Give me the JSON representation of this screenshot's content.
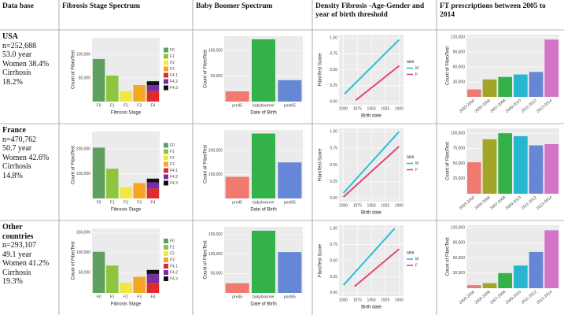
{
  "header": {
    "columns": [
      "Data base",
      "Fibrosis Stage Spectrum",
      "Baby Boomer Spectrum",
      "Density Fibrosis -Age-Gender and year of birth threshold",
      "FT prescriptions between 2005 to 2014"
    ]
  },
  "rows": [
    {
      "database": {
        "name": "USA",
        "lines": [
          "n=252,688",
          "53.0 year",
          "Women 38.4%",
          "Cirrhosis",
          "18.2%"
        ]
      },
      "fibrosis": {
        "type": "stacked-bar",
        "ylabel": "Count of FibroTest",
        "xlabel": "Fibrosis Stage",
        "categories": [
          "F0",
          "F1",
          "F2",
          "F3",
          "F4"
        ],
        "ylim": [
          0,
          135000
        ],
        "yticks": [
          {
            "value": 50000,
            "label": "50,000"
          },
          {
            "value": 100000,
            "label": "100,000"
          }
        ],
        "series": [
          {
            "name": "F0",
            "color": "#5fa05f",
            "values": [
              90000,
              null,
              null,
              null,
              null
            ]
          },
          {
            "name": "F1",
            "color": "#8cc63f",
            "values": [
              null,
              55000,
              null,
              null,
              null
            ]
          },
          {
            "name": "F2",
            "color": "#f2e641",
            "values": [
              null,
              null,
              22000,
              null,
              null
            ]
          },
          {
            "name": "F3",
            "color": "#f5a623",
            "values": [
              null,
              null,
              null,
              35000,
              null
            ]
          },
          {
            "name": "F4.1",
            "color": "#e02b2b",
            "values": [
              null,
              null,
              null,
              null,
              22000
            ]
          },
          {
            "name": "F4.2",
            "color": "#7a2fa0",
            "values": [
              null,
              null,
              null,
              null,
              13000
            ]
          },
          {
            "name": "F4.3",
            "color": "#111111",
            "values": [
              null,
              null,
              null,
              null,
              8000
            ]
          }
        ]
      },
      "babyboomer": {
        "type": "bar",
        "ylabel": "Count of FibroTest",
        "xlabel": "Date of Birth",
        "categories": [
          "pre45",
          "babyboomer",
          "post65"
        ],
        "ylim": [
          0,
          128000
        ],
        "yticks": [
          {
            "value": 50000,
            "label": "50,000"
          },
          {
            "value": 100000,
            "label": "100,000"
          }
        ],
        "values": [
          20000,
          122000,
          42000
        ],
        "colors": [
          "#f07a70",
          "#33b24a",
          "#6687d6"
        ]
      },
      "density": {
        "type": "line",
        "ylabel": "FibroTest Score",
        "xlabel": "Birth date",
        "legend_title": "sex",
        "xlim": [
          2008,
          1892
        ],
        "xticks": [
          2000,
          1975,
          1950,
          1925,
          1900
        ],
        "ylim": [
          -0.05,
          1.05
        ],
        "yticks": [
          {
            "value": 0,
            "label": "0.00"
          },
          {
            "value": 0.25,
            "label": "0.25"
          },
          {
            "value": 0.5,
            "label": "0.50"
          },
          {
            "value": 0.75,
            "label": "0.75"
          },
          {
            "value": 1,
            "label": "1.00"
          }
        ],
        "series": [
          {
            "name": "M",
            "color": "#2bbfd6",
            "x": [
              1998,
              1900
            ],
            "values": [
              0.12,
              0.97
            ]
          },
          {
            "name": "F",
            "color": "#e0457a",
            "x": [
              1978,
              1900
            ],
            "values": [
              0.02,
              0.56
            ]
          }
        ]
      },
      "prescriptions": {
        "type": "bar",
        "ylabel": "Count of FibroTest",
        "categories": [
          "2003-2004",
          "2005-2006",
          "2007-2008",
          "2009-2010",
          "2011-2012",
          "2013-2014"
        ],
        "ylim": [
          0,
          125000
        ],
        "yticks": [
          {
            "value": 30000,
            "label": "30,000"
          },
          {
            "value": 60000,
            "label": "60,000"
          },
          {
            "value": 90000,
            "label": "90,000"
          },
          {
            "value": 120000,
            "label": "120,000"
          }
        ],
        "values": [
          15000,
          35000,
          40000,
          45000,
          50000,
          115000
        ],
        "colors": [
          "#f07a70",
          "#a3a528",
          "#33b24a",
          "#27b5cf",
          "#6687d6",
          "#d474c8"
        ]
      }
    },
    {
      "database": {
        "name": "France",
        "lines": [
          "n=470,762",
          "50.7 year",
          "Women 42.6%",
          "Cirrhosis",
          "14.8%"
        ]
      },
      "fibrosis": {
        "type": "stacked-bar",
        "ylabel": "Count of FibroTest",
        "xlabel": "Fibrosis Stage",
        "categories": [
          "F0",
          "F1",
          "F2",
          "F3",
          "F4"
        ],
        "ylim": [
          0,
          270000
        ],
        "yticks": [
          {
            "value": 100000,
            "label": "100,000"
          },
          {
            "value": 200000,
            "label": "200,000"
          }
        ],
        "series": [
          {
            "name": "F0",
            "color": "#5fa05f",
            "values": [
              205000,
              null,
              null,
              null,
              null
            ]
          },
          {
            "name": "F1",
            "color": "#8cc63f",
            "values": [
              null,
              120000,
              null,
              null,
              null
            ]
          },
          {
            "name": "F2",
            "color": "#f2e641",
            "values": [
              null,
              null,
              45000,
              null,
              null
            ]
          },
          {
            "name": "F3",
            "color": "#f5a623",
            "values": [
              null,
              null,
              null,
              62000,
              null
            ]
          },
          {
            "name": "F4.1",
            "color": "#e02b2b",
            "values": [
              null,
              null,
              null,
              null,
              40000
            ]
          },
          {
            "name": "F4.2",
            "color": "#7a2fa0",
            "values": [
              null,
              null,
              null,
              null,
              25000
            ]
          },
          {
            "name": "F4.3",
            "color": "#111111",
            "values": [
              null,
              null,
              null,
              null,
              15000
            ]
          }
        ]
      },
      "babyboomer": {
        "type": "bar",
        "ylabel": "Count of FibroTest",
        "xlabel": "Date of Birth",
        "categories": [
          "pre45",
          "babyboomer",
          "post65"
        ],
        "ylim": [
          0,
          285000
        ],
        "yticks": [
          {
            "value": 100000,
            "label": "100,000"
          },
          {
            "value": 200000,
            "label": "200,000"
          }
        ],
        "values": [
          90000,
          270000,
          150000
        ],
        "colors": [
          "#f07a70",
          "#33b24a",
          "#6687d6"
        ]
      },
      "density": {
        "type": "line",
        "ylabel": "FibroTest Score",
        "xlabel": "Birth date",
        "legend_title": "sex",
        "xlim": [
          2008,
          1892
        ],
        "xticks": [
          2000,
          1975,
          1950,
          1925,
          1900
        ],
        "ylim": [
          -0.05,
          1.05
        ],
        "yticks": [
          {
            "value": 0,
            "label": "0.00"
          },
          {
            "value": 0.25,
            "label": "0.25"
          },
          {
            "value": 0.5,
            "label": "0.50"
          },
          {
            "value": 0.75,
            "label": "0.75"
          },
          {
            "value": 1,
            "label": "1.00"
          }
        ],
        "series": [
          {
            "name": "M",
            "color": "#2bbfd6",
            "x": [
              2000,
              1900
            ],
            "values": [
              0.08,
              1.0
            ]
          },
          {
            "name": "F",
            "color": "#e0457a",
            "x": [
              2000,
              1900
            ],
            "values": [
              0.02,
              0.78
            ]
          }
        ]
      },
      "prescriptions": {
        "type": "bar",
        "ylabel": "Count of FibroTest",
        "categories": [
          "2003-2004",
          "2005-2006",
          "2007-2008",
          "2009-2010",
          "2011-2012",
          "2013-2014"
        ],
        "ylim": [
          0,
          108000
        ],
        "yticks": [
          {
            "value": 25000,
            "label": "25,000"
          },
          {
            "value": 50000,
            "label": "50,000"
          },
          {
            "value": 75000,
            "label": "75,000"
          },
          {
            "value": 100000,
            "label": "100,000"
          }
        ],
        "values": [
          52000,
          90000,
          100000,
          95000,
          80000,
          82000
        ],
        "colors": [
          "#f07a70",
          "#a3a528",
          "#33b24a",
          "#27b5cf",
          "#6687d6",
          "#d474c8"
        ]
      }
    },
    {
      "database": {
        "name": "Other countries",
        "lines": [
          "n=293,107",
          "49.1 year",
          "Women 41.2%",
          "Cirrhosis",
          "19.3%"
        ]
      },
      "fibrosis": {
        "type": "stacked-bar",
        "ylabel": "Count of FibroTest",
        "xlabel": "Fibrosis Stage",
        "categories": [
          "F0",
          "F1",
          "F2",
          "F3",
          "F4"
        ],
        "ylim": [
          0,
          160000
        ],
        "yticks": [
          {
            "value": 50000,
            "label": "50,000"
          },
          {
            "value": 100000,
            "label": "100,000"
          },
          {
            "value": 150000,
            "label": "150,000"
          }
        ],
        "series": [
          {
            "name": "F0",
            "color": "#5fa05f",
            "values": [
              102000,
              null,
              null,
              null,
              null
            ]
          },
          {
            "name": "F1",
            "color": "#8cc63f",
            "values": [
              null,
              68000,
              null,
              null,
              null
            ]
          },
          {
            "name": "F2",
            "color": "#f2e641",
            "values": [
              null,
              null,
              25000,
              null,
              null
            ]
          },
          {
            "name": "F3",
            "color": "#f5a623",
            "values": [
              null,
              null,
              null,
              40000,
              null
            ]
          },
          {
            "name": "F4.1",
            "color": "#e02b2b",
            "values": [
              null,
              null,
              null,
              null,
              25000
            ]
          },
          {
            "name": "F4.2",
            "color": "#7a2fa0",
            "values": [
              null,
              null,
              null,
              null,
              22000
            ]
          },
          {
            "name": "F4.3",
            "color": "#111111",
            "values": [
              null,
              null,
              null,
              null,
              10000
            ]
          }
        ]
      },
      "babyboomer": {
        "type": "bar",
        "ylabel": "Count of FibroTest",
        "xlabel": "Date of Birth",
        "categories": [
          "pre45",
          "babyboomer",
          "post65"
        ],
        "ylim": [
          0,
          170000
        ],
        "yticks": [
          {
            "value": 50000,
            "label": "50,000"
          },
          {
            "value": 100000,
            "label": "100,000"
          },
          {
            "value": 150000,
            "label": "150,000"
          }
        ],
        "values": [
          25000,
          160000,
          105000
        ],
        "colors": [
          "#f07a70",
          "#33b24a",
          "#6687d6"
        ]
      },
      "density": {
        "type": "line",
        "ylabel": "FibroTest Score",
        "xlabel": "Birth date",
        "legend_title": "sex",
        "xlim": [
          2008,
          1892
        ],
        "xticks": [
          2000,
          1975,
          1950,
          1925,
          1900
        ],
        "ylim": [
          -0.05,
          1.05
        ],
        "yticks": [
          {
            "value": 0,
            "label": "0.00"
          },
          {
            "value": 0.25,
            "label": "0.25"
          },
          {
            "value": 0.5,
            "label": "0.50"
          },
          {
            "value": 0.75,
            "label": "0.75"
          },
          {
            "value": 1,
            "label": "1.00"
          }
        ],
        "series": [
          {
            "name": "M",
            "color": "#2bbfd6",
            "x": [
              2000,
              1908
            ],
            "values": [
              0.12,
              1.0
            ]
          },
          {
            "name": "F",
            "color": "#e0457a",
            "x": [
              1980,
              1900
            ],
            "values": [
              0.1,
              0.68
            ]
          }
        ]
      },
      "prescriptions": {
        "type": "bar",
        "ylabel": "Count of FibroTest",
        "categories": [
          "2003-2004",
          "2005-2006",
          "2007-2008",
          "2009-2010",
          "2011-2012",
          "2013-2014"
        ],
        "ylim": [
          0,
          125000
        ],
        "yticks": [
          {
            "value": 30000,
            "label": "30,000"
          },
          {
            "value": 60000,
            "label": "60,000"
          },
          {
            "value": 90000,
            "label": "90,000"
          },
          {
            "value": 120000,
            "label": "120,000"
          }
        ],
        "values": [
          6000,
          10000,
          30000,
          45000,
          72000,
          115000
        ],
        "colors": [
          "#f07a70",
          "#a3a528",
          "#33b24a",
          "#27b5cf",
          "#6687d6",
          "#d474c8"
        ]
      }
    }
  ]
}
